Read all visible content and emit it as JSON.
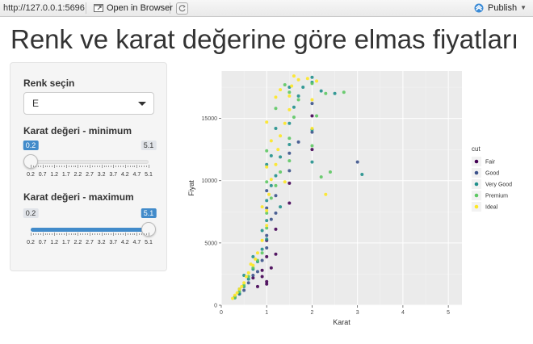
{
  "topbar": {
    "url": "http://127.0.0.1:5696",
    "open_in_browser": "Open in Browser",
    "publish": "Publish"
  },
  "page": {
    "title": "Renk ve karat değerine göre elmas fiyatları"
  },
  "sidebar": {
    "color_label": "Renk seçin",
    "color_value": "E",
    "min_label": "Karat değeri - minimum",
    "max_label": "Karat değeri - maximum",
    "slider_min": {
      "value": "0.2",
      "bound_max": "5.1",
      "value_numeric": 0.2
    },
    "slider_max": {
      "value": "5.1",
      "bound_min": "0.2",
      "value_numeric": 5.1
    },
    "tick_labels": [
      "0.2",
      "0.7",
      "1.2",
      "1.7",
      "2.2",
      "2.7",
      "3.2",
      "3.7",
      "4.2",
      "4.7",
      "5.1"
    ]
  },
  "colors": {
    "accent": "#428bca",
    "panel_bg": "#ebebeb",
    "Fair": "#440154",
    "Good": "#3b528b",
    "Very Good": "#21908c",
    "Premium": "#5dc863",
    "Ideal": "#fde725"
  },
  "chart_data": {
    "type": "scatter",
    "xlabel": "Karat",
    "ylabel": "Fiyat",
    "xlim": [
      0,
      5.3
    ],
    "ylim": [
      0,
      18800
    ],
    "x_ticks": [
      0,
      1,
      2,
      3,
      4,
      5
    ],
    "y_ticks": [
      0,
      5000,
      10000,
      15000
    ],
    "grid": true,
    "legend": {
      "title": "cut",
      "position": "right",
      "entries": [
        "Fair",
        "Good",
        "Very Good",
        "Premium",
        "Ideal"
      ]
    },
    "series": [
      {
        "name": "Fair",
        "points": [
          [
            0.7,
            2200
          ],
          [
            0.9,
            2800
          ],
          [
            1.0,
            3900
          ],
          [
            1.0,
            5200
          ],
          [
            1.2,
            6100
          ],
          [
            1.5,
            8200
          ],
          [
            1.0,
            1900
          ],
          [
            1.1,
            3000
          ],
          [
            0.8,
            1500
          ],
          [
            1.5,
            9800
          ],
          [
            2.0,
            12500
          ],
          [
            2.0,
            15200
          ],
          [
            0.9,
            2300
          ],
          [
            1.2,
            4100
          ],
          [
            1.0,
            1700
          ]
        ]
      },
      {
        "name": "Good",
        "points": [
          [
            0.3,
            700
          ],
          [
            0.5,
            1200
          ],
          [
            0.7,
            2400
          ],
          [
            0.9,
            3600
          ],
          [
            1.0,
            4600
          ],
          [
            1.0,
            5600
          ],
          [
            1.1,
            6900
          ],
          [
            1.2,
            7400
          ],
          [
            1.5,
            10800
          ],
          [
            1.0,
            7800
          ],
          [
            2.0,
            16200
          ],
          [
            2.0,
            13900
          ],
          [
            3.0,
            11500
          ],
          [
            0.6,
            1800
          ],
          [
            0.8,
            2700
          ],
          [
            1.5,
            12200
          ],
          [
            1.2,
            8800
          ],
          [
            0.4,
            900
          ],
          [
            1.0,
            9200
          ],
          [
            1.7,
            13100
          ]
        ]
      },
      {
        "name": "Very Good",
        "points": [
          [
            0.3,
            600
          ],
          [
            0.4,
            950
          ],
          [
            0.5,
            1500
          ],
          [
            0.6,
            2100
          ],
          [
            0.7,
            2900
          ],
          [
            0.8,
            3500
          ],
          [
            0.9,
            4500
          ],
          [
            1.0,
            5300
          ],
          [
            1.0,
            6800
          ],
          [
            1.0,
            8400
          ],
          [
            1.1,
            9600
          ],
          [
            1.2,
            10400
          ],
          [
            1.3,
            11900
          ],
          [
            1.5,
            12900
          ],
          [
            1.5,
            14600
          ],
          [
            1.6,
            15900
          ],
          [
            1.7,
            16800
          ],
          [
            2.0,
            17900
          ],
          [
            2.0,
            18300
          ],
          [
            2.2,
            17200
          ],
          [
            2.5,
            17000
          ],
          [
            3.1,
            10500
          ],
          [
            1.1,
            12000
          ],
          [
            1.5,
            17500
          ],
          [
            2.0,
            14100
          ],
          [
            1.2,
            14200
          ],
          [
            0.7,
            3900
          ],
          [
            0.9,
            6000
          ],
          [
            1.0,
            11300
          ],
          [
            1.3,
            7900
          ],
          [
            1.8,
            17500
          ],
          [
            2.0,
            11500
          ],
          [
            0.5,
            2400
          ],
          [
            0.4,
            1300
          ]
        ]
      },
      {
        "name": "Premium",
        "points": [
          [
            0.3,
            650
          ],
          [
            0.4,
            1100
          ],
          [
            0.5,
            1600
          ],
          [
            0.7,
            3000
          ],
          [
            0.9,
            4200
          ],
          [
            1.0,
            6200
          ],
          [
            1.0,
            7400
          ],
          [
            1.1,
            8600
          ],
          [
            1.2,
            9600
          ],
          [
            1.3,
            10700
          ],
          [
            1.5,
            11600
          ],
          [
            1.5,
            13400
          ],
          [
            1.6,
            15100
          ],
          [
            1.7,
            16500
          ],
          [
            2.0,
            17800
          ],
          [
            2.3,
            17000
          ],
          [
            2.4,
            10700
          ],
          [
            2.2,
            10300
          ],
          [
            2.7,
            17100
          ],
          [
            1.0,
            12400
          ],
          [
            1.2,
            15800
          ],
          [
            1.4,
            17700
          ],
          [
            1.5,
            17100
          ],
          [
            2.1,
            15200
          ],
          [
            0.8,
            3600
          ],
          [
            1.0,
            9900
          ],
          [
            0.6,
            2300
          ],
          [
            2.0,
            12800
          ]
        ]
      },
      {
        "name": "Ideal",
        "points": [
          [
            0.25,
            550
          ],
          [
            0.3,
            800
          ],
          [
            0.35,
            1000
          ],
          [
            0.4,
            1300
          ],
          [
            0.5,
            1800
          ],
          [
            0.55,
            2300
          ],
          [
            0.6,
            2600
          ],
          [
            0.7,
            3200
          ],
          [
            0.75,
            3700
          ],
          [
            0.8,
            4200
          ],
          [
            0.9,
            5200
          ],
          [
            1.0,
            6400
          ],
          [
            1.0,
            7600
          ],
          [
            1.05,
            8900
          ],
          [
            1.1,
            10100
          ],
          [
            1.2,
            11300
          ],
          [
            1.25,
            12500
          ],
          [
            1.3,
            13600
          ],
          [
            1.4,
            14600
          ],
          [
            1.5,
            15700
          ],
          [
            1.5,
            16800
          ],
          [
            1.55,
            17600
          ],
          [
            1.6,
            18400
          ],
          [
            1.7,
            18100
          ],
          [
            2.0,
            16500
          ],
          [
            2.0,
            14200
          ],
          [
            2.3,
            8900
          ],
          [
            1.9,
            18200
          ],
          [
            1.0,
            14700
          ],
          [
            1.2,
            16700
          ],
          [
            0.9,
            7900
          ],
          [
            1.1,
            13200
          ],
          [
            1.4,
            9900
          ],
          [
            0.45,
            1500
          ],
          [
            0.65,
            3300
          ],
          [
            1.0,
            11100
          ],
          [
            1.3,
            17300
          ],
          [
            2.1,
            18000
          ]
        ]
      }
    ]
  }
}
